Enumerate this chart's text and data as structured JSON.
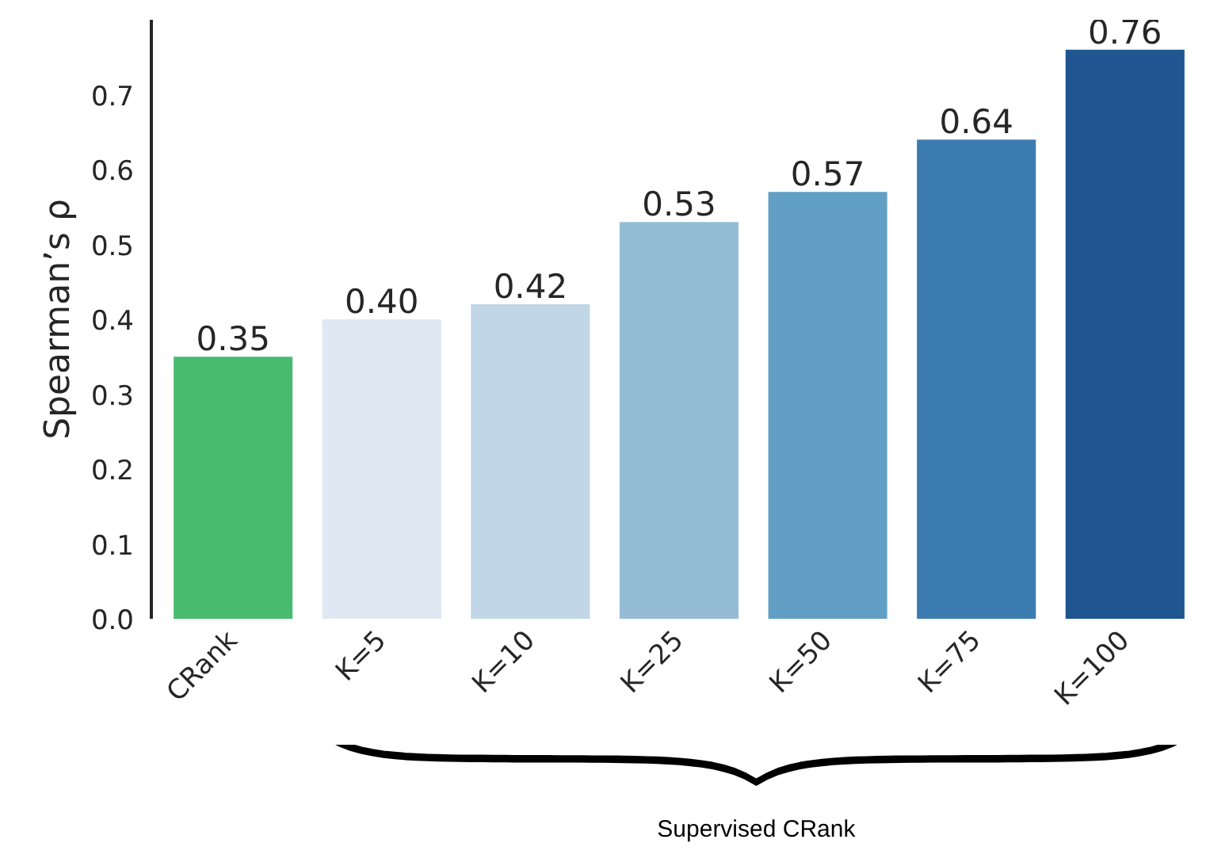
{
  "chart_data": {
    "type": "bar",
    "ylabel": "Spearman’s ρ",
    "categories": [
      "CRank",
      "K=5",
      "K=10",
      "K=25",
      "K=50",
      "K=75",
      "K=100"
    ],
    "values": [
      0.35,
      0.4,
      0.42,
      0.53,
      0.57,
      0.64,
      0.76
    ],
    "value_labels": [
      "0.35",
      "0.40",
      "0.42",
      "0.53",
      "0.57",
      "0.64",
      "0.76"
    ],
    "colors": [
      "#48bb6f",
      "#dfe8f3",
      "#c1d6e7",
      "#95bcd5",
      "#629fc4",
      "#3b7bb0",
      "#1f5590"
    ],
    "ylim": [
      0,
      0.8
    ],
    "yticks": [
      {
        "value": 0,
        "label": "0.0"
      },
      {
        "value": 0.1,
        "label": "0.1"
      },
      {
        "value": 0.2,
        "label": "0.2"
      },
      {
        "value": 0.3,
        "label": "0.3"
      },
      {
        "value": 0.4,
        "label": "0.4"
      },
      {
        "value": 0.5,
        "label": "0.5"
      },
      {
        "value": 0.6,
        "label": "0.6"
      },
      {
        "value": 0.7,
        "label": "0.7"
      }
    ],
    "grid": false,
    "annotations": [
      "Supervised CRank"
    ]
  }
}
